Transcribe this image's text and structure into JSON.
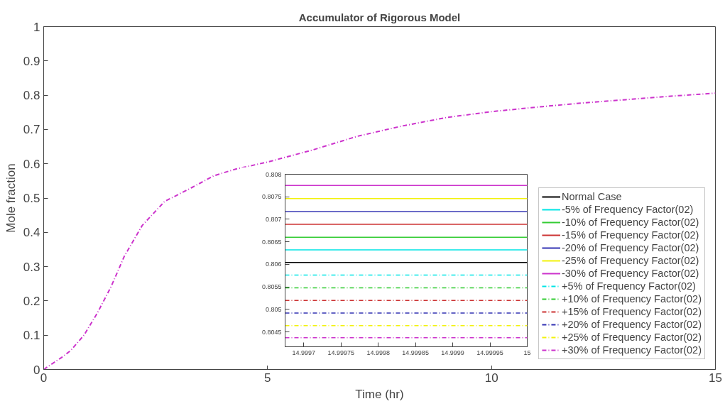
{
  "chart_data": [
    {
      "type": "line",
      "title": "Accumulator of Rigorous Model",
      "xlabel": "Time (hr)",
      "ylabel": "Mole fraction",
      "x": [
        0,
        0.4,
        0.6,
        0.9,
        1.2,
        1.5,
        1.8,
        2.2,
        2.7,
        3.3,
        3.8,
        4.3,
        5,
        6,
        7,
        8,
        9,
        10,
        11,
        12,
        13,
        14,
        15
      ],
      "xlim": [
        0,
        15
      ],
      "xticks": [
        0,
        5,
        10,
        15
      ],
      "ylim": [
        0,
        1
      ],
      "yticks": [
        0,
        0.1,
        0.2,
        0.3,
        0.4,
        0.5,
        0.6,
        0.7,
        0.8,
        0.9,
        1
      ],
      "grid": false,
      "legend": "bottom right",
      "series": [
        {
          "name": "Normal Case",
          "color": "#000000",
          "line_style": "solid",
          "values": [
            null,
            null,
            null,
            null,
            null,
            null,
            null,
            null,
            null,
            null,
            null,
            null,
            null,
            null,
            null,
            null,
            null,
            null,
            null,
            null,
            null,
            null,
            null
          ]
        },
        {
          "name": "-5% of Frequency Factor(02)",
          "color": "#00e5e5",
          "line_style": "solid",
          "values": [
            null,
            null,
            null,
            null,
            null,
            null,
            null,
            null,
            null,
            null,
            null,
            null,
            null,
            null,
            null,
            null,
            null,
            null,
            null,
            null,
            null,
            null,
            null
          ]
        },
        {
          "name": "-10% of Frequency Factor(02)",
          "color": "#33cc33",
          "line_style": "solid",
          "values": [
            null,
            null,
            null,
            null,
            null,
            null,
            null,
            null,
            null,
            null,
            null,
            null,
            null,
            null,
            null,
            null,
            null,
            null,
            null,
            null,
            null,
            null,
            null
          ]
        },
        {
          "name": "-15% of Frequency Factor(02)",
          "color": "#cc3333",
          "line_style": "solid",
          "values": [
            null,
            null,
            null,
            null,
            null,
            null,
            null,
            null,
            null,
            null,
            null,
            null,
            null,
            null,
            null,
            null,
            null,
            null,
            null,
            null,
            null,
            null,
            null
          ]
        },
        {
          "name": "-20% of Frequency Factor(02)",
          "color": "#3333b3",
          "line_style": "solid",
          "values": [
            null,
            null,
            null,
            null,
            null,
            null,
            null,
            null,
            null,
            null,
            null,
            null,
            null,
            null,
            null,
            null,
            null,
            null,
            null,
            null,
            null,
            null,
            null
          ]
        },
        {
          "name": "-25% of Frequency Factor(02)",
          "color": "#f2f20d",
          "line_style": "solid",
          "values": [
            null,
            null,
            null,
            null,
            null,
            null,
            null,
            null,
            null,
            null,
            null,
            null,
            null,
            null,
            null,
            null,
            null,
            null,
            null,
            null,
            null,
            null,
            null
          ]
        },
        {
          "name": "-30% of Frequency Factor(02)",
          "color": "#cc33cc",
          "line_style": "solid",
          "values": [
            null,
            null,
            null,
            null,
            null,
            null,
            null,
            null,
            null,
            null,
            null,
            null,
            null,
            null,
            null,
            null,
            null,
            null,
            null,
            null,
            null,
            null,
            null
          ]
        },
        {
          "name": "+5% of Frequency Factor(02)",
          "color": "#00e5e5",
          "line_style": "dashed",
          "values": [
            null,
            null,
            null,
            null,
            null,
            null,
            null,
            null,
            null,
            null,
            null,
            null,
            null,
            null,
            null,
            null,
            null,
            null,
            null,
            null,
            null,
            null,
            null
          ]
        },
        {
          "name": "+10% of Frequency Factor(02)",
          "color": "#33cc33",
          "line_style": "dashed",
          "values": [
            null,
            null,
            null,
            null,
            null,
            null,
            null,
            null,
            null,
            null,
            null,
            null,
            null,
            null,
            null,
            null,
            null,
            null,
            null,
            null,
            null,
            null,
            null
          ]
        },
        {
          "name": "+15% of Frequency Factor(02)",
          "color": "#cc3333",
          "line_style": "dashed",
          "values": [
            null,
            null,
            null,
            null,
            null,
            null,
            null,
            null,
            null,
            null,
            null,
            null,
            null,
            null,
            null,
            null,
            null,
            null,
            null,
            null,
            null,
            null,
            null
          ]
        },
        {
          "name": "+20% of Frequency Factor(02)",
          "color": "#3333b3",
          "line_style": "dashed",
          "values": [
            null,
            null,
            null,
            null,
            null,
            null,
            null,
            null,
            null,
            null,
            null,
            null,
            null,
            null,
            null,
            null,
            null,
            null,
            null,
            null,
            null,
            null,
            null
          ]
        },
        {
          "name": "+25% of Frequency Factor(02)",
          "color": "#f2f20d",
          "line_style": "dashed",
          "values": [
            null,
            null,
            null,
            null,
            null,
            null,
            null,
            null,
            null,
            null,
            null,
            null,
            null,
            null,
            null,
            null,
            null,
            null,
            null,
            null,
            null,
            null,
            null
          ]
        },
        {
          "name": "+30% of Frequency Factor(02)",
          "color": "#cc33cc",
          "line_style": "dashed",
          "values": [
            0,
            0.035,
            0.055,
            0.1,
            0.165,
            0.24,
            0.33,
            0.42,
            0.49,
            0.53,
            0.565,
            0.585,
            0.605,
            0.64,
            0.68,
            0.71,
            0.735,
            0.752,
            0.765,
            0.777,
            0.787,
            0.797,
            0.806
          ]
        }
      ]
    },
    {
      "type": "line",
      "x": [
        14.999675,
        15
      ],
      "xlim": [
        14.999675,
        15
      ],
      "xticks": [
        14.9997,
        14.99975,
        14.9998,
        14.99985,
        14.9999,
        14.99995,
        15
      ],
      "ylim": [
        0.80417,
        0.808
      ],
      "yticks": [
        0.8045,
        0.805,
        0.8055,
        0.806,
        0.8065,
        0.807,
        0.8075,
        0.808
      ],
      "grid": false,
      "series": [
        {
          "color": "#000000",
          "line_style": "solid",
          "values": [
            0.80604,
            0.80604
          ]
        },
        {
          "color": "#00e5e5",
          "line_style": "solid",
          "values": [
            0.80632,
            0.80632
          ]
        },
        {
          "color": "#33cc33",
          "line_style": "solid",
          "values": [
            0.8066,
            0.8066
          ]
        },
        {
          "color": "#cc3333",
          "line_style": "solid",
          "values": [
            0.80689,
            0.80689
          ]
        },
        {
          "color": "#3333b3",
          "line_style": "solid",
          "values": [
            0.80717,
            0.80717
          ]
        },
        {
          "color": "#f2f20d",
          "line_style": "solid",
          "values": [
            0.80746,
            0.80746
          ]
        },
        {
          "color": "#cc33cc",
          "line_style": "solid",
          "values": [
            0.80775,
            0.80775
          ]
        },
        {
          "color": "#00e5e5",
          "line_style": "dashed",
          "values": [
            0.80576,
            0.80576
          ]
        },
        {
          "color": "#33cc33",
          "line_style": "dashed",
          "values": [
            0.80548,
            0.80548
          ]
        },
        {
          "color": "#cc3333",
          "line_style": "dashed",
          "values": [
            0.8052,
            0.8052
          ]
        },
        {
          "color": "#3333b3",
          "line_style": "dashed",
          "values": [
            0.80492,
            0.80492
          ]
        },
        {
          "color": "#f2f20d",
          "line_style": "dashed",
          "values": [
            0.80464,
            0.80464
          ]
        },
        {
          "color": "#cc33cc",
          "line_style": "dashed",
          "values": [
            0.80437,
            0.80437
          ]
        }
      ]
    }
  ]
}
